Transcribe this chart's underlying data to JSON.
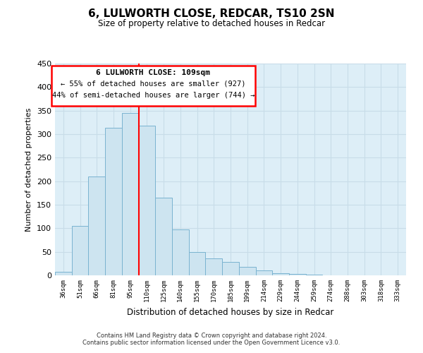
{
  "title": "6, LULWORTH CLOSE, REDCAR, TS10 2SN",
  "subtitle": "Size of property relative to detached houses in Redcar",
  "xlabel": "Distribution of detached houses by size in Redcar",
  "ylabel": "Number of detached properties",
  "categories": [
    "36sqm",
    "51sqm",
    "66sqm",
    "81sqm",
    "95sqm",
    "110sqm",
    "125sqm",
    "140sqm",
    "155sqm",
    "170sqm",
    "185sqm",
    "199sqm",
    "214sqm",
    "229sqm",
    "244sqm",
    "259sqm",
    "274sqm",
    "288sqm",
    "303sqm",
    "318sqm",
    "333sqm"
  ],
  "values": [
    7,
    105,
    210,
    313,
    345,
    318,
    165,
    97,
    50,
    36,
    29,
    18,
    10,
    5,
    3,
    1,
    0,
    0,
    0,
    0,
    0
  ],
  "bar_color": "#cde4f0",
  "bar_edge_color": "#7ab3d0",
  "redline_index": 4.5,
  "annotation_title": "6 LULWORTH CLOSE: 109sqm",
  "annotation_line1": "← 55% of detached houses are smaller (927)",
  "annotation_line2": "44% of semi-detached houses are larger (744) →",
  "footer1": "Contains HM Land Registry data © Crown copyright and database right 2024.",
  "footer2": "Contains public sector information licensed under the Open Government Licence v3.0.",
  "ylim": [
    0,
    450
  ],
  "yticks": [
    0,
    50,
    100,
    150,
    200,
    250,
    300,
    350,
    400,
    450
  ],
  "grid_color": "#c8dce8",
  "background_color": "#ddeef7"
}
